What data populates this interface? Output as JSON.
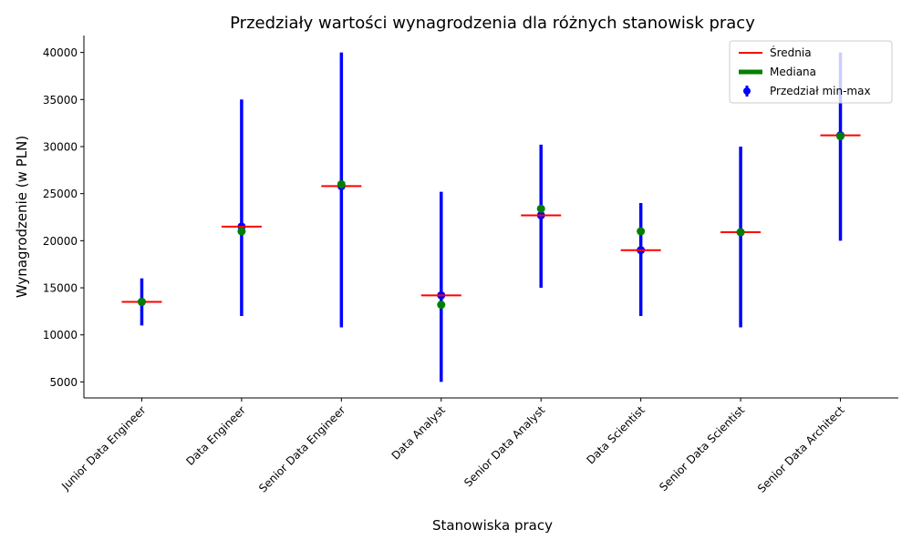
{
  "chart_data": {
    "type": "errorbar",
    "title": "Przedziały wartości wynagrodzenia dla różnych stanowisk pracy",
    "xlabel": "Stanowiska pracy",
    "ylabel": "Wynagrodzenie (w PLN)",
    "ylim": [
      3300,
      41800
    ],
    "yticks": [
      5000,
      10000,
      15000,
      20000,
      25000,
      30000,
      35000,
      40000
    ],
    "categories": [
      "Junior Data Engineer",
      "Data Engineer",
      "Senior Data Engineer",
      "Data Analyst",
      "Senior Data Analyst",
      "Data Scientist",
      "Senior Data Scientist",
      "Senior Data Architect"
    ],
    "min": [
      11000,
      12000,
      10800,
      5000,
      15000,
      12000,
      10800,
      20000
    ],
    "max": [
      16000,
      35000,
      40000,
      25200,
      30200,
      24000,
      30000,
      40000
    ],
    "mean": [
      13500,
      21500,
      25800,
      14200,
      22700,
      19000,
      20900,
      31200
    ],
    "median": [
      13500,
      21000,
      26000,
      13200,
      23400,
      21000,
      20900,
      31100
    ],
    "grid": false,
    "legend": {
      "position": "top-right",
      "entries": [
        "Średnia",
        "Mediana",
        "Przedział min-max"
      ]
    },
    "colors": {
      "range": "#0000ff",
      "mean": "#ff0000",
      "median": "#008000"
    }
  }
}
